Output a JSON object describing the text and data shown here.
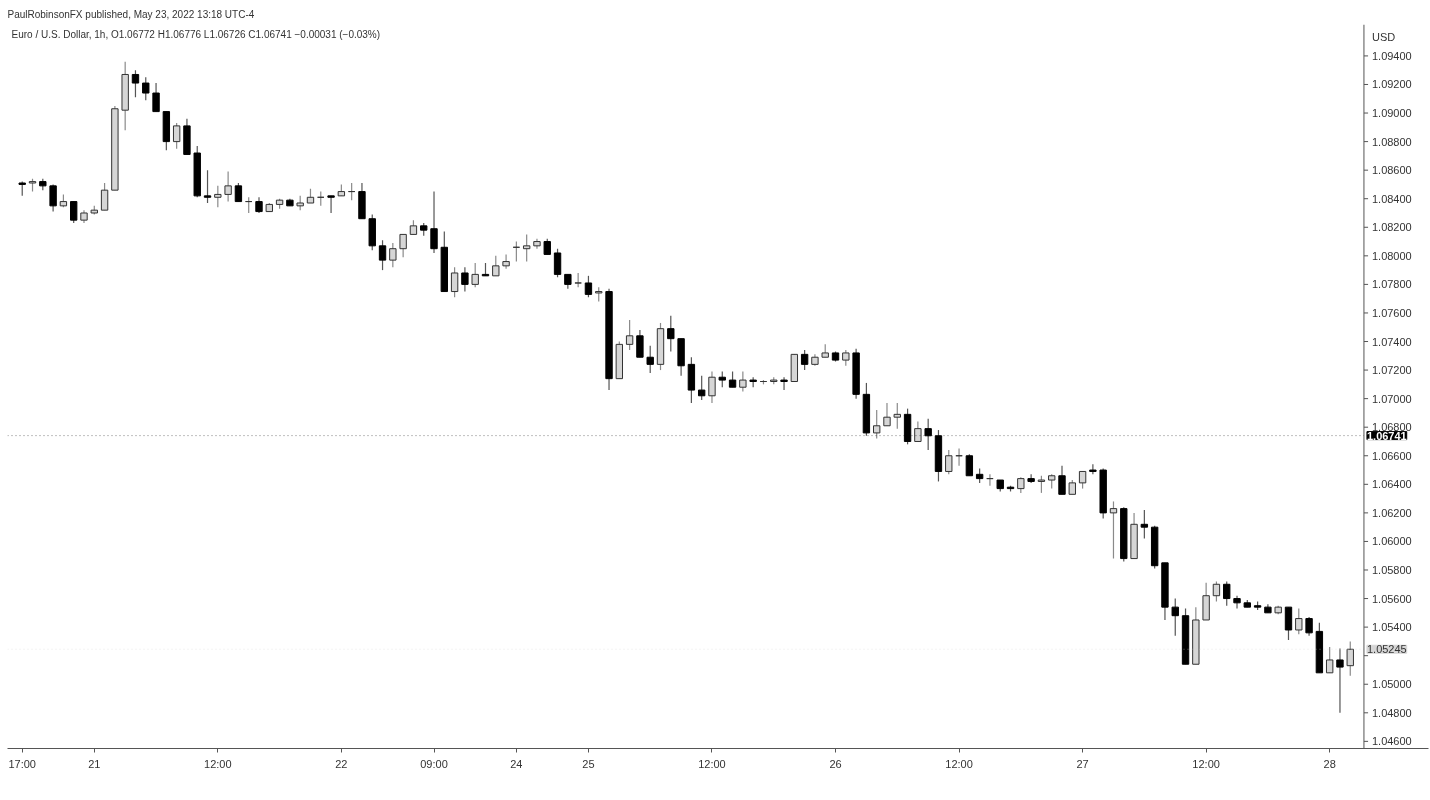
{
  "chart_data": {
    "type": "candlestick",
    "title": "Euro / U.S. Dollar, 1h,  O1.06772  H1.06776  L1.06726  C1.06741  −0.00031 (−0.03%)",
    "ylabel": "USD",
    "annotations": [
      "PaulRobinsonFX published, May 23, 2022 13:18 UTC-4"
    ],
    "categories": [
      "17:00",
      null,
      null,
      null,
      null,
      null,
      null,
      "21",
      null,
      null,
      null,
      null,
      null,
      null,
      null,
      null,
      null,
      null,
      null,
      "12:00",
      null,
      null,
      null,
      null,
      null,
      null,
      null,
      null,
      null,
      null,
      null,
      "22",
      null,
      null,
      null,
      null,
      null,
      null,
      null,
      null,
      "09:00",
      null,
      null,
      null,
      null,
      null,
      null,
      null,
      "24",
      null,
      null,
      null,
      null,
      null,
      null,
      "25",
      null,
      null,
      null,
      null,
      null,
      null,
      null,
      null,
      null,
      null,
      null,
      "12:00",
      null,
      null,
      null,
      null,
      null,
      null,
      null,
      null,
      null,
      null,
      null,
      "26",
      null,
      null,
      null,
      null,
      null,
      null,
      null,
      null,
      null,
      null,
      null,
      "12:00",
      null,
      null,
      null,
      null,
      null,
      null,
      null,
      null,
      null,
      null,
      null,
      "27",
      null,
      null,
      null,
      null,
      null,
      null,
      null,
      null,
      null,
      null,
      null,
      "12:00",
      null,
      null,
      null,
      null,
      null,
      null,
      null,
      null,
      null,
      null,
      null,
      "28",
      null,
      null
    ],
    "ohlc": [
      [
        1.0851,
        1.0852,
        1.0842,
        1.085
      ],
      [
        1.0851,
        1.0854,
        1.0845,
        1.0852
      ],
      [
        1.0852,
        1.0854,
        1.0846,
        1.0849
      ],
      [
        1.0849,
        1.085,
        1.0831,
        1.0835
      ],
      [
        1.0835,
        1.0843,
        1.0834,
        1.0838
      ],
      [
        1.0838,
        1.0838,
        1.0823,
        1.0825
      ],
      [
        1.0825,
        1.0832,
        1.0823,
        1.083
      ],
      [
        1.083,
        1.0835,
        1.0829,
        1.0832
      ],
      [
        1.0832,
        1.0851,
        1.0832,
        1.0846
      ],
      [
        1.0846,
        1.0905,
        1.0846,
        1.0903
      ],
      [
        1.0902,
        1.0936,
        1.0888,
        1.0927
      ],
      [
        1.0927,
        1.093,
        1.0911,
        1.0921
      ],
      [
        1.0921,
        1.0925,
        1.0909,
        1.0914
      ],
      [
        1.0914,
        1.0921,
        1.0901,
        1.0901
      ],
      [
        1.0901,
        1.0901,
        1.0874,
        1.088
      ],
      [
        1.088,
        1.0893,
        1.0875,
        1.0891
      ],
      [
        1.0891,
        1.0896,
        1.0871,
        1.0871
      ],
      [
        1.0872,
        1.0877,
        1.0841,
        1.0842
      ],
      [
        1.0842,
        1.086,
        1.0837,
        1.0841
      ],
      [
        1.0841,
        1.0849,
        1.0834,
        1.0843
      ],
      [
        1.0843,
        1.0859,
        1.0838,
        1.0849
      ],
      [
        1.0849,
        1.0851,
        1.0838,
        1.0838
      ],
      [
        1.0838,
        1.0841,
        1.083,
        1.0838
      ],
      [
        1.0838,
        1.0841,
        1.083,
        1.0831
      ],
      [
        1.0831,
        1.0837,
        1.0831,
        1.0836
      ],
      [
        1.0836,
        1.084,
        1.0833,
        1.0839
      ],
      [
        1.0839,
        1.084,
        1.0835,
        1.0835
      ],
      [
        1.0835,
        1.0842,
        1.0832,
        1.0837
      ],
      [
        1.0837,
        1.0847,
        1.0837,
        1.0841
      ],
      [
        1.0841,
        1.0845,
        1.0835,
        1.0841
      ],
      [
        1.0842,
        1.0842,
        1.083,
        1.0841
      ],
      [
        1.0842,
        1.085,
        1.0842,
        1.0845
      ],
      [
        1.0845,
        1.0851,
        1.0839,
        1.0845
      ],
      [
        1.0845,
        1.0851,
        1.0826,
        1.0826
      ],
      [
        1.0826,
        1.0829,
        1.0804,
        1.0807
      ],
      [
        1.0807,
        1.0811,
        1.079,
        1.0797
      ],
      [
        1.0797,
        1.0809,
        1.0792,
        1.0805
      ],
      [
        1.0805,
        1.0815,
        1.0799,
        1.0815
      ],
      [
        1.0815,
        1.0825,
        1.0815,
        1.0821
      ],
      [
        1.0821,
        1.0823,
        1.0814,
        1.0818
      ],
      [
        1.0819,
        1.0845,
        1.0802,
        1.0805
      ],
      [
        1.0806,
        1.0817,
        1.0775,
        1.0775
      ],
      [
        1.0775,
        1.0792,
        1.0771,
        1.0788
      ],
      [
        1.0788,
        1.0792,
        1.0775,
        1.078
      ],
      [
        1.078,
        1.0795,
        1.0778,
        1.0787
      ],
      [
        1.0787,
        1.0795,
        1.0786,
        1.0786
      ],
      [
        1.0786,
        1.08,
        1.0786,
        1.0793
      ],
      [
        1.0793,
        1.0801,
        1.0791,
        1.0796
      ],
      [
        1.0806,
        1.081,
        1.0796,
        1.0806
      ],
      [
        1.0805,
        1.0815,
        1.0796,
        1.0807
      ],
      [
        1.0807,
        1.0812,
        1.0805,
        1.081
      ],
      [
        1.081,
        1.0812,
        1.0801,
        1.0801
      ],
      [
        1.0802,
        1.0805,
        1.0785,
        1.0787
      ],
      [
        1.0787,
        1.0787,
        1.0777,
        1.078
      ],
      [
        1.0781,
        1.0788,
        1.0778,
        1.0781
      ],
      [
        1.0781,
        1.0786,
        1.0771,
        1.0773
      ],
      [
        1.0774,
        1.0778,
        1.0768,
        1.0775
      ],
      [
        1.0775,
        1.0777,
        1.0706,
        1.0714
      ],
      [
        1.0714,
        1.074,
        1.0714,
        1.0738
      ],
      [
        1.0738,
        1.0755,
        1.0734,
        1.0744
      ],
      [
        1.0744,
        1.0748,
        1.0729,
        1.0729
      ],
      [
        1.0729,
        1.0737,
        1.0718,
        1.0724
      ],
      [
        1.0724,
        1.0753,
        1.072,
        1.0749
      ],
      [
        1.0749,
        1.0758,
        1.0733,
        1.0742
      ],
      [
        1.0742,
        1.0742,
        1.0716,
        1.0723
      ],
      [
        1.0724,
        1.0729,
        1.0697,
        1.0706
      ],
      [
        1.0706,
        1.0716,
        1.0699,
        1.0702
      ],
      [
        1.0702,
        1.0719,
        1.0697,
        1.0715
      ],
      [
        1.0715,
        1.0719,
        1.0708,
        1.0713
      ],
      [
        1.0713,
        1.0719,
        1.0708,
        1.0708
      ],
      [
        1.0708,
        1.0719,
        1.0705,
        1.0713
      ],
      [
        1.0713,
        1.0715,
        1.0708,
        1.0712
      ],
      [
        1.0712,
        1.0713,
        1.071,
        1.0712
      ],
      [
        1.0712,
        1.0715,
        1.071,
        1.0713
      ],
      [
        1.0713,
        1.0715,
        1.0706,
        1.0712
      ],
      [
        1.0712,
        1.0731,
        1.0712,
        1.0731
      ],
      [
        1.0731,
        1.0734,
        1.072,
        1.0724
      ],
      [
        1.0724,
        1.0731,
        1.0723,
        1.0729
      ],
      [
        1.0729,
        1.0738,
        1.0729,
        1.0732
      ],
      [
        1.0732,
        1.0733,
        1.0726,
        1.0727
      ],
      [
        1.0727,
        1.0734,
        1.0723,
        1.0732
      ],
      [
        1.0732,
        1.0735,
        1.07,
        1.0703
      ],
      [
        1.0703,
        1.0711,
        1.0674,
        1.0676
      ],
      [
        1.0676,
        1.0692,
        1.0672,
        1.0681
      ],
      [
        1.0681,
        1.0697,
        1.0681,
        1.0687
      ],
      [
        1.0687,
        1.0697,
        1.0679,
        1.0689
      ],
      [
        1.0689,
        1.0693,
        1.0668,
        1.067
      ],
      [
        1.067,
        1.0684,
        1.067,
        1.0679
      ],
      [
        1.0679,
        1.0686,
        1.0664,
        1.0674
      ],
      [
        1.0674,
        1.0678,
        1.0642,
        1.0649
      ],
      [
        1.0649,
        1.0664,
        1.0647,
        1.066
      ],
      [
        1.066,
        1.0665,
        1.0653,
        1.066
      ],
      [
        1.066,
        1.0661,
        1.0646,
        1.0646
      ],
      [
        1.0647,
        1.0651,
        1.0641,
        1.0644
      ],
      [
        1.0644,
        1.0647,
        1.0639,
        1.0644
      ],
      [
        1.0643,
        1.0643,
        1.0635,
        1.0637
      ],
      [
        1.0638,
        1.0639,
        1.0635,
        1.0637
      ],
      [
        1.0637,
        1.0645,
        1.0634,
        1.0644
      ],
      [
        1.0644,
        1.0647,
        1.0641,
        1.0642
      ],
      [
        1.0642,
        1.0646,
        1.0634,
        1.0643
      ],
      [
        1.0643,
        1.0647,
        1.0637,
        1.0646
      ],
      [
        1.0646,
        1.0653,
        1.0633,
        1.0633
      ],
      [
        1.0633,
        1.0643,
        1.0633,
        1.0641
      ],
      [
        1.0641,
        1.0649,
        1.0637,
        1.0649
      ],
      [
        1.065,
        1.0654,
        1.0647,
        1.0649
      ],
      [
        1.065,
        1.0651,
        1.0616,
        1.062
      ],
      [
        1.062,
        1.0628,
        1.0588,
        1.0623
      ],
      [
        1.0623,
        1.0624,
        1.0586,
        1.0588
      ],
      [
        1.0588,
        1.062,
        1.0588,
        1.0612
      ],
      [
        1.0612,
        1.0622,
        1.0602,
        1.061
      ],
      [
        1.061,
        1.0611,
        1.0581,
        1.0583
      ],
      [
        1.0585,
        1.0585,
        1.0545,
        1.0554
      ],
      [
        1.0554,
        1.056,
        1.0534,
        1.0548
      ],
      [
        1.0548,
        1.0553,
        1.0514,
        1.0514
      ],
      [
        1.0514,
        1.0554,
        1.0514,
        1.0545
      ],
      [
        1.0545,
        1.0571,
        1.0545,
        1.0562
      ],
      [
        1.0562,
        1.0572,
        1.0558,
        1.057
      ],
      [
        1.057,
        1.0572,
        1.0555,
        1.056
      ],
      [
        1.056,
        1.0562,
        1.0553,
        1.0557
      ],
      [
        1.0557,
        1.0559,
        1.0554,
        1.0554
      ],
      [
        1.0555,
        1.0558,
        1.0552,
        1.0554
      ],
      [
        1.0554,
        1.0556,
        1.055,
        1.055
      ],
      [
        1.055,
        1.0555,
        1.0549,
        1.0554
      ],
      [
        1.0554,
        1.0554,
        1.0531,
        1.0538
      ],
      [
        1.0538,
        1.0553,
        1.0535,
        1.0546
      ],
      [
        1.0546,
        1.0547,
        1.0534,
        1.0536
      ],
      [
        1.0537,
        1.0543,
        1.0508,
        1.0508
      ],
      [
        1.0508,
        1.0526,
        1.0508,
        1.0517
      ],
      [
        1.0517,
        1.0525,
        1.048,
        1.0512
      ],
      [
        1.0513,
        1.053,
        1.0506,
        1.05245
      ]
    ],
    "ylim": [
      1.0455,
      1.0962
    ],
    "yticks": [
      {
        "value": 1.046,
        "label": "1.04600"
      },
      {
        "value": 1.048,
        "label": "1.04800"
      },
      {
        "value": 1.05,
        "label": "1.05000"
      },
      {
        "value": 1.052,
        "label": null
      },
      {
        "value": 1.054,
        "label": "1.05400"
      },
      {
        "value": 1.056,
        "label": "1.05600"
      },
      {
        "value": 1.058,
        "label": "1.05800"
      },
      {
        "value": 1.06,
        "label": "1.06000"
      },
      {
        "value": 1.062,
        "label": "1.06200"
      },
      {
        "value": 1.064,
        "label": "1.06400"
      },
      {
        "value": 1.066,
        "label": "1.06600"
      },
      {
        "value": 1.068,
        "label": "1.06800"
      },
      {
        "value": 1.07,
        "label": "1.07000"
      },
      {
        "value": 1.072,
        "label": "1.07200"
      },
      {
        "value": 1.074,
        "label": "1.07400"
      },
      {
        "value": 1.076,
        "label": "1.07600"
      },
      {
        "value": 1.078,
        "label": "1.07800"
      },
      {
        "value": 1.08,
        "label": "1.08000"
      },
      {
        "value": 1.082,
        "label": "1.08200"
      },
      {
        "value": 1.084,
        "label": "1.08400"
      },
      {
        "value": 1.086,
        "label": "1.08600"
      },
      {
        "value": 1.088,
        "label": "1.08800"
      },
      {
        "value": 1.09,
        "label": "1.09000"
      },
      {
        "value": 1.092,
        "label": "1.09200"
      },
      {
        "value": 1.094,
        "label": "1.09400"
      }
    ],
    "ref_lines": [
      {
        "axis": "y",
        "value": 1.06741,
        "label": "1.06741",
        "color": "#000000"
      },
      {
        "axis": "y",
        "value": 1.05245,
        "label": "1.05245",
        "color": "#d6d6d6"
      }
    ],
    "grid": false
  }
}
